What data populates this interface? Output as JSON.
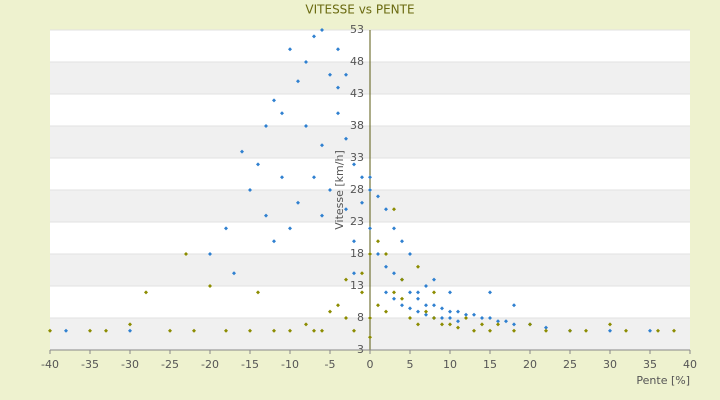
{
  "chart_data": {
    "type": "scatter",
    "title": "VITESSE vs PENTE",
    "x_label": "Pente [%]",
    "y_label": "Vitesse [km/h]",
    "xlim": [
      -40,
      40
    ],
    "xticks": [
      -40,
      -35,
      -30,
      -25,
      -20,
      -15,
      -10,
      -5,
      0,
      5,
      10,
      15,
      20,
      25,
      30,
      35,
      40
    ],
    "ylim": [
      3,
      53
    ],
    "yticks": [
      3,
      8,
      13,
      18,
      23,
      28,
      33,
      38,
      43,
      48,
      53
    ],
    "grid": true,
    "series": [
      {
        "color": "#2f80d0",
        "x": [
          -10,
          -8,
          -7,
          -6,
          -5,
          -4,
          -9,
          -11,
          -12,
          -13,
          -14,
          -15,
          -16,
          -18,
          -20,
          -8,
          -6,
          -4,
          -3,
          -2,
          -1,
          0,
          1,
          2,
          3,
          4,
          5,
          -7,
          -5,
          -9,
          -10,
          -12,
          -6,
          -3,
          -2,
          0,
          1,
          2,
          3,
          4,
          5,
          6,
          7,
          8,
          9,
          10,
          11,
          12,
          13,
          14,
          15,
          16,
          17,
          18,
          20,
          22,
          25,
          3,
          4,
          5,
          6,
          7,
          8,
          9,
          10,
          11,
          6,
          7,
          8,
          10,
          -1,
          0,
          -4,
          -3,
          -11,
          -13,
          -17,
          -2,
          2,
          15,
          18,
          -38,
          -30,
          30,
          35
        ],
        "values": [
          50,
          48,
          52,
          53,
          46,
          44,
          45,
          40,
          42,
          38,
          32,
          28,
          34,
          22,
          18,
          38,
          35,
          40,
          36,
          32,
          30,
          28,
          27,
          25,
          22,
          20,
          18,
          30,
          28,
          26,
          22,
          20,
          24,
          25,
          20,
          22,
          18,
          16,
          15,
          14,
          12,
          11,
          10,
          10,
          9.5,
          9,
          9,
          8.5,
          8.5,
          8,
          8,
          7.5,
          7.5,
          7,
          7,
          6.5,
          6,
          11,
          10,
          9.5,
          9,
          8.5,
          8,
          8,
          8,
          7.5,
          12,
          13,
          14,
          12,
          26,
          30,
          50,
          46,
          30,
          24,
          15,
          15,
          12,
          12,
          10,
          6,
          6,
          6,
          6
        ]
      },
      {
        "color": "#8c8c00",
        "x": [
          -40,
          -35,
          -30,
          -28,
          -25,
          -23,
          -20,
          -18,
          -15,
          -14,
          -12,
          -10,
          -8,
          -6,
          -5,
          -4,
          -3,
          -2,
          -1,
          0,
          0,
          1,
          2,
          3,
          4,
          5,
          6,
          7,
          8,
          9,
          10,
          11,
          12,
          13,
          14,
          15,
          16,
          18,
          20,
          22,
          25,
          27,
          30,
          32,
          36,
          38,
          1,
          2,
          3,
          -1,
          0,
          4,
          6,
          8,
          -3,
          -7,
          -22,
          -33
        ],
        "values": [
          6,
          6,
          7,
          12,
          6,
          18,
          13,
          6,
          6,
          12,
          6,
          6,
          7,
          6,
          9,
          10,
          8,
          6,
          12,
          5,
          8,
          10,
          9,
          12,
          11,
          8,
          7,
          9,
          8,
          7,
          7,
          6.5,
          8,
          6,
          7,
          6,
          7,
          6,
          7,
          6,
          6,
          6,
          7,
          6,
          6,
          6,
          20,
          18,
          25,
          15,
          18,
          14,
          16,
          12,
          14,
          6,
          6,
          6
        ]
      }
    ]
  }
}
